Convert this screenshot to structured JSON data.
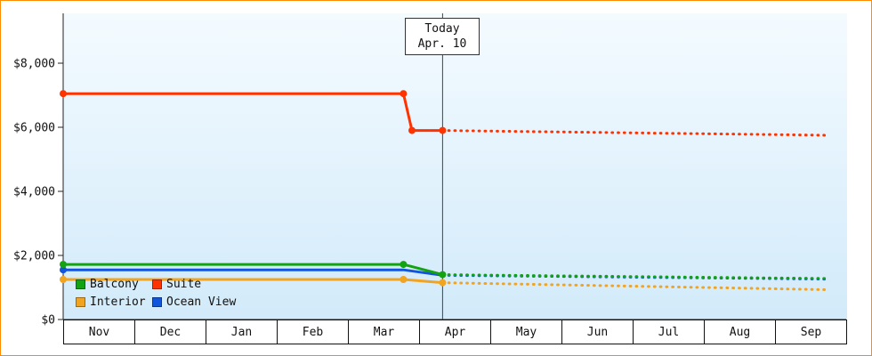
{
  "colors": {
    "frame_border": "#ff8c00",
    "plot_bg_top": "#f4fbff",
    "plot_bg_bottom": "#d2eafa",
    "axis": "#222222",
    "today_line": "#444444"
  },
  "chart_data": {
    "type": "line",
    "title": "",
    "xlabel": "",
    "ylabel": "",
    "grid": false,
    "legend_position": "bottom-left-inside",
    "categories": [
      "Nov",
      "Dec",
      "Jan",
      "Feb",
      "Mar",
      "Apr",
      "May",
      "Jun",
      "Jul",
      "Aug",
      "Sep"
    ],
    "ylim": [
      0,
      9500
    ],
    "yticks": [
      {
        "value": 0,
        "label": "$0"
      },
      {
        "value": 2000,
        "label": "$2,000"
      },
      {
        "value": 4000,
        "label": "$4,000"
      },
      {
        "value": 6000,
        "label": "$6,000"
      },
      {
        "value": 8000,
        "label": "$8,000"
      }
    ],
    "today": {
      "x_index": 5.33,
      "label": [
        "Today",
        "Apr. 10"
      ]
    },
    "series": [
      {
        "name": "Balcony",
        "color": "#12a212",
        "draw_index": 1,
        "solid": [
          [
            0,
            1720
          ],
          [
            4.78,
            1720
          ],
          [
            5.33,
            1400
          ]
        ],
        "dotted": [
          [
            5.33,
            1400
          ],
          [
            10.75,
            1280
          ]
        ],
        "markers": [
          [
            0,
            1720
          ],
          [
            4.78,
            1720
          ],
          [
            5.33,
            1400
          ]
        ]
      },
      {
        "name": "Suite",
        "color": "#ff3300",
        "draw_index": 3,
        "solid": [
          [
            0,
            7050
          ],
          [
            4.78,
            7050
          ],
          [
            4.9,
            5900
          ],
          [
            5.33,
            5900
          ]
        ],
        "dotted": [
          [
            5.33,
            5900
          ],
          [
            10.75,
            5750
          ]
        ],
        "markers": [
          [
            0,
            7050
          ],
          [
            4.78,
            7050
          ],
          [
            4.9,
            5900
          ],
          [
            5.33,
            5900
          ]
        ]
      },
      {
        "name": "Interior",
        "color": "#f0a420",
        "draw_index": 2,
        "solid": [
          [
            0,
            1250
          ],
          [
            4.78,
            1250
          ],
          [
            5.33,
            1150
          ]
        ],
        "dotted": [
          [
            5.33,
            1150
          ],
          [
            10.75,
            930
          ]
        ],
        "markers": [
          [
            0,
            1250
          ],
          [
            4.78,
            1250
          ],
          [
            5.33,
            1150
          ]
        ]
      },
      {
        "name": "Ocean View",
        "color": "#1155dd",
        "draw_index": 0,
        "solid": [
          [
            0,
            1550
          ],
          [
            4.78,
            1550
          ],
          [
            5.33,
            1380
          ]
        ],
        "dotted": [
          [
            5.33,
            1380
          ],
          [
            10.75,
            1260
          ]
        ],
        "markers": [
          [
            0,
            1550
          ]
        ]
      }
    ]
  }
}
